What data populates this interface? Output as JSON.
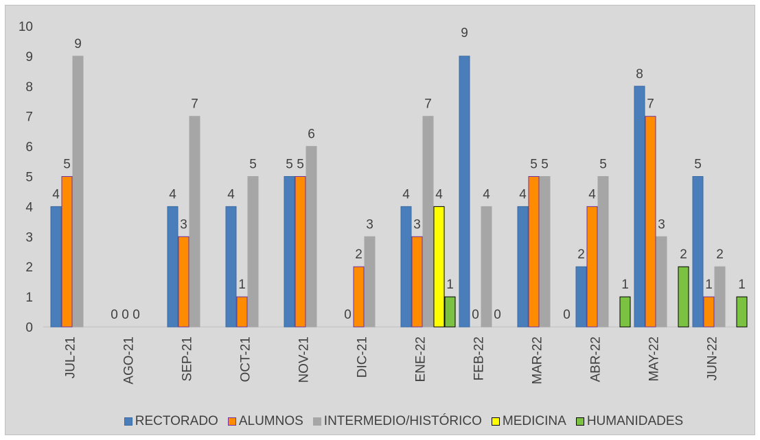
{
  "chart_data": {
    "type": "bar",
    "title": "",
    "xlabel": "",
    "ylabel": "",
    "ylim": [
      0,
      10
    ],
    "yticks": [
      0,
      1,
      2,
      3,
      4,
      5,
      6,
      7,
      8,
      9,
      10
    ],
    "grid": false,
    "legend_position": "bottom",
    "categories": [
      "JUL-21",
      "AGO-21",
      "SEP-21",
      "OCT-21",
      "NOV-21",
      "DIC-21",
      "ENE-22",
      "FEB-22",
      "MAR-22",
      "ABR-22",
      "MAY-22",
      "JUN-22"
    ],
    "series": [
      {
        "name": "RECTORADO",
        "color": "#4a7ebb",
        "border": "#3a6aa3",
        "values": [
          4,
          0,
          4,
          4,
          5,
          0,
          4,
          9,
          4,
          2,
          8,
          5
        ],
        "labels": [
          "4",
          "0",
          "4",
          "4",
          "5",
          "0",
          "4",
          "",
          "4",
          "2",
          "8",
          "5"
        ]
      },
      {
        "name": "ALUMNOS",
        "color": "#ff8c00",
        "border": "#7030a0",
        "values": [
          5,
          0,
          3,
          1,
          5,
          2,
          3,
          0,
          5,
          4,
          7,
          1
        ],
        "labels": [
          "5",
          "0",
          "3",
          "1",
          "5",
          "2",
          "3",
          "0",
          "5",
          "4",
          "7",
          "1"
        ]
      },
      {
        "name": "INTERMEDIO/HISTÓRICO",
        "color": "#a6a6a6",
        "border": "#a6a6a6",
        "values": [
          9,
          0,
          7,
          5,
          6,
          3,
          7,
          4,
          5,
          5,
          3,
          2
        ],
        "labels": [
          "9",
          "0",
          "7",
          "5",
          "6",
          "3",
          "7",
          "4",
          "5",
          "5",
          "3",
          "2"
        ]
      },
      {
        "name": "MEDICINA",
        "color": "#ffff00",
        "border": "#000000",
        "values": [
          null,
          null,
          null,
          null,
          null,
          null,
          4,
          null,
          null,
          null,
          null,
          null
        ],
        "labels": [
          "",
          "",
          "",
          "",
          "",
          "",
          "4",
          "",
          "",
          "",
          "",
          ""
        ]
      },
      {
        "name": "HUMANIDADES",
        "color": "#7cc242",
        "border": "#000000",
        "values": [
          null,
          null,
          null,
          null,
          null,
          null,
          1,
          null,
          0,
          1,
          2,
          1
        ],
        "labels": [
          "",
          "",
          "",
          "",
          "",
          "",
          "1",
          "",
          "0",
          "1",
          "2",
          "1"
        ]
      }
    ],
    "extra_labels": [
      {
        "category": "FEB-22",
        "text": "9",
        "value": 9,
        "series": 0
      },
      {
        "category": "FEB-22",
        "text": "0",
        "value": 0,
        "series": 3
      }
    ]
  }
}
